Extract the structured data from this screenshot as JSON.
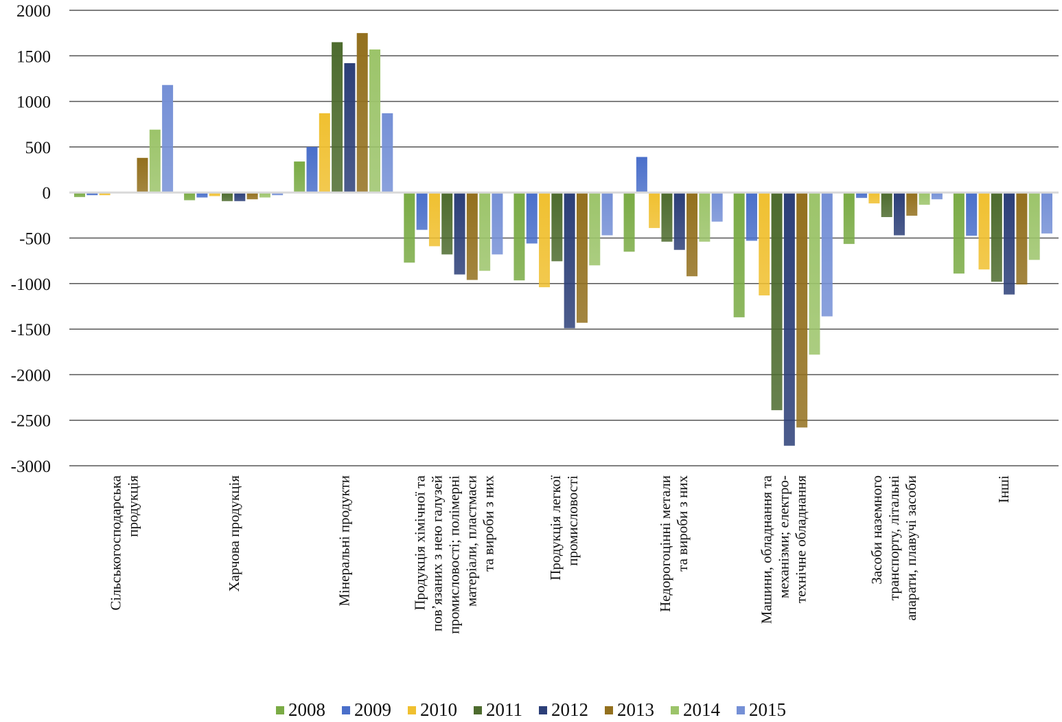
{
  "chart_data": {
    "type": "bar",
    "title": "",
    "xlabel": "",
    "ylabel": "",
    "ylim": [
      -3000,
      2000
    ],
    "yticks": [
      2000,
      1500,
      1000,
      500,
      0,
      -500,
      -1000,
      -1500,
      -2000,
      -2500,
      -3000
    ],
    "grid": true,
    "legend_position": "bottom",
    "categories": [
      [
        "Сільськогосподарська",
        "продукція"
      ],
      [
        "Харчова продукція"
      ],
      [
        "Мінеральні продукти"
      ],
      [
        "Продукція хімічної та",
        "пов’язаних з нею галузей",
        "промисловості; полімерні",
        "матеріали, пластмаси",
        "та вироби з них"
      ],
      [
        "Продукція легкої",
        "промисловості"
      ],
      [
        "Недорогоцінні метали",
        "та вироби з них"
      ],
      [
        "Машини, обладнання та",
        "механізми; електро-",
        "технічне обладнання"
      ],
      [
        "Засоби наземного",
        "транспорту, літальні",
        "апарати, плавучі засоби"
      ],
      [
        "Інші"
      ]
    ],
    "series": [
      {
        "name": "2008",
        "color": "#7aab45",
        "values": [
          -50,
          -85,
          340,
          -770,
          -965,
          -650,
          -1370,
          -565,
          -890
        ]
      },
      {
        "name": "2009",
        "color": "#4a6fca",
        "values": [
          -30,
          -55,
          500,
          -410,
          -560,
          390,
          -530,
          -60,
          -475
        ]
      },
      {
        "name": "2010",
        "color": "#f0c030",
        "values": [
          -30,
          -40,
          870,
          -590,
          -1040,
          -390,
          -1130,
          -120,
          -845
        ]
      },
      {
        "name": "2011",
        "color": "#4d6b2e",
        "values": [
          0,
          -95,
          1650,
          -680,
          -755,
          -540,
          -2390,
          -270,
          -980
        ]
      },
      {
        "name": "2012",
        "color": "#2c3f78",
        "values": [
          0,
          -95,
          1420,
          -900,
          -1490,
          -630,
          -2780,
          -470,
          -1120
        ]
      },
      {
        "name": "2013",
        "color": "#93701e",
        "values": [
          380,
          -75,
          1750,
          -960,
          -1430,
          -920,
          -2580,
          -255,
          -1010
        ]
      },
      {
        "name": "2014",
        "color": "#9cc46a",
        "values": [
          690,
          -55,
          1570,
          -860,
          -800,
          -540,
          -1780,
          -135,
          -740
        ]
      },
      {
        "name": "2015",
        "color": "#7590d6",
        "values": [
          1180,
          -30,
          870,
          -680,
          -470,
          -320,
          -1360,
          -75,
          -450
        ]
      }
    ]
  }
}
